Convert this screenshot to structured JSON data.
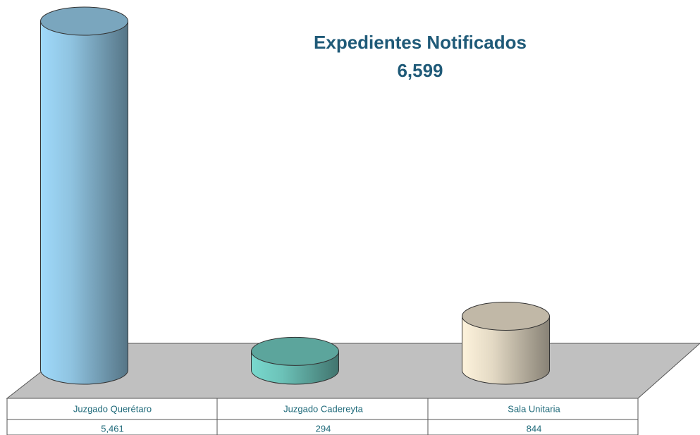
{
  "chart_data": {
    "type": "cylinder-bar",
    "title": "Expedientes Notificados",
    "subtitle": "6,599",
    "categories": [
      "Juzgado Querétaro",
      "Juzgado Cadereyta",
      "Sala Unitaria"
    ],
    "values": [
      5461,
      294,
      844
    ],
    "value_labels": [
      "5,461",
      "294",
      "844"
    ],
    "colors": [
      "#8fc3e0",
      "#6cc2b8",
      "#e3d9c4"
    ]
  }
}
